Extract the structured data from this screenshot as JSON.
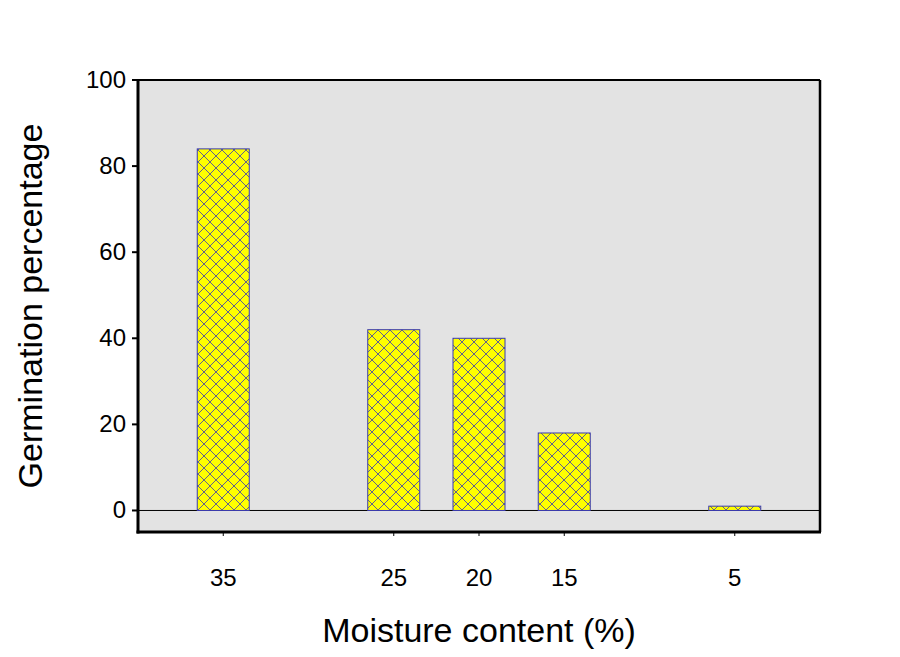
{
  "chart_data": {
    "type": "bar",
    "x_label": "Moisture content (%)",
    "y_label": "Germination percentage",
    "x": [
      35,
      25,
      20,
      15,
      5
    ],
    "values": [
      84,
      42,
      40,
      18,
      1
    ],
    "color": "#ffff00",
    "xlim": [
      40,
      0
    ],
    "xticks": [
      35,
      25,
      20,
      15,
      5
    ],
    "ylim": [
      -5,
      100
    ],
    "yticks": [
      0,
      20,
      40,
      60,
      80,
      100
    ],
    "grid": false
  }
}
